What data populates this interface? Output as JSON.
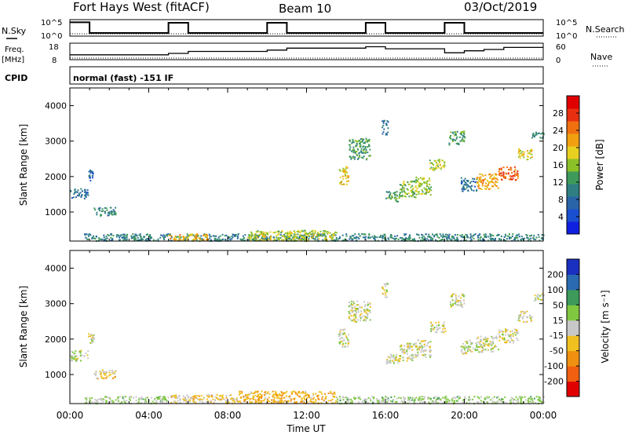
{
  "header": {
    "title": "Fort Hays West (fitACF)",
    "beam": "Beam 10",
    "date": "03/Oct/2019"
  },
  "param_panels": {
    "nsky_label": "N.Sky",
    "nsky_ticks": [
      "10^5",
      "10^0"
    ],
    "nsearch_label": "N.Search",
    "nsearch_ticks": [
      "10^5",
      "10^0"
    ],
    "freq_label": "Freq.",
    "freq_unit": "[MHz]",
    "freq_ticks": [
      "18",
      "8"
    ],
    "nave_label": "Nave",
    "nave_ticks": [
      "60",
      "0"
    ],
    "cpid_label": "CPID",
    "cpid_text": "normal (fast) -151 IF"
  },
  "x_axis": {
    "label": "Time UT",
    "ticks": [
      "00:00",
      "04:00",
      "08:00",
      "12:00",
      "16:00",
      "20:00",
      "00:00"
    ]
  },
  "power_colorbar": {
    "label": "Power [dB]",
    "ticks": [
      "4",
      "8",
      "12",
      "16",
      "20",
      "24",
      "28"
    ],
    "colors": [
      "#1020e0",
      "#1a4fd0",
      "#2a64a8",
      "#2f7f82",
      "#3d9a5a",
      "#8cc028",
      "#e8d020",
      "#f0a010",
      "#f07010",
      "#e83010",
      "#e00000"
    ]
  },
  "velocity_colorbar": {
    "label": "Velocity [m s⁻¹]",
    "ticks": [
      "200",
      "100",
      "50",
      "15",
      "-15",
      "-50",
      "-100",
      "-200"
    ],
    "colors": [
      "#1a30c0",
      "#2a6ab0",
      "#3d9a5a",
      "#7fc840",
      "#c8c8c8",
      "#f0c020",
      "#f09010",
      "#f06010",
      "#e00000"
    ]
  },
  "chart_data": [
    {
      "type": "line",
      "title": "N.Sky / N.Search",
      "x_range_hours": [
        0,
        24
      ],
      "series": [
        {
          "name": "N.Sky",
          "x": [
            0,
            1,
            1,
            5,
            5,
            6,
            6,
            10,
            10,
            11,
            11,
            15,
            15,
            16,
            16,
            19,
            19,
            20,
            20,
            24
          ],
          "y": [
            4.6,
            4.6,
            0.6,
            0.6,
            4.4,
            4.4,
            0.6,
            0.6,
            4.4,
            4.4,
            0.6,
            0.6,
            4.4,
            4.4,
            0.6,
            0.6,
            4.4,
            4.4,
            0.6,
            0.6
          ]
        },
        {
          "name": "N.Search",
          "x": [
            0,
            24
          ],
          "y": [
            0.3,
            0.3
          ]
        }
      ]
    },
    {
      "type": "line",
      "title": "Freq / Nave",
      "x_range_hours": [
        0,
        24
      ],
      "series": [
        {
          "name": "Freq",
          "x": [
            0,
            1,
            1,
            5,
            5,
            6,
            6,
            10,
            10,
            11,
            11,
            15,
            15,
            16,
            16,
            19,
            19,
            20,
            20,
            21,
            21,
            22,
            22,
            24
          ],
          "y": [
            10.5,
            10.5,
            10.5,
            10.5,
            11.5,
            11.5,
            13,
            13,
            14,
            14,
            15.5,
            15.5,
            16.5,
            16.5,
            15,
            15,
            12,
            12,
            13.5,
            13.5,
            14.5,
            14.5,
            16,
            16
          ]
        },
        {
          "name": "Nave",
          "x": [
            0,
            24
          ],
          "y": [
            8,
            8
          ]
        }
      ]
    },
    {
      "type": "heatmap",
      "title": "Power",
      "xlabel": "Time UT",
      "ylabel": "Slant Range [km]",
      "x_range_hours": [
        0,
        24
      ],
      "ylim": [
        180,
        4500
      ],
      "y_ticks": [
        1000,
        2000,
        3000,
        4000
      ],
      "regions": [
        {
          "t0": 0.0,
          "t1": 0.9,
          "r0": 1400,
          "r1": 1700,
          "value": 8
        },
        {
          "t0": 0.9,
          "t1": 1.2,
          "r0": 1900,
          "r1": 2200,
          "value": 6
        },
        {
          "t0": 1.2,
          "t1": 2.3,
          "r0": 900,
          "r1": 1150,
          "value": 10
        },
        {
          "t0": 0.7,
          "t1": 24.0,
          "r0": 200,
          "r1": 400,
          "value": 10
        },
        {
          "t0": 5.0,
          "t1": 7.0,
          "r0": 220,
          "r1": 400,
          "value": 20
        },
        {
          "t0": 9.0,
          "t1": 13.5,
          "r0": 200,
          "r1": 500,
          "value": 16
        },
        {
          "t0": 13.6,
          "t1": 14.1,
          "r0": 1800,
          "r1": 2300,
          "value": 18
        },
        {
          "t0": 14.1,
          "t1": 15.2,
          "r0": 2500,
          "r1": 3100,
          "value": 12
        },
        {
          "t0": 15.8,
          "t1": 16.1,
          "r0": 3200,
          "r1": 3600,
          "value": 8
        },
        {
          "t0": 16.0,
          "t1": 16.7,
          "r0": 1300,
          "r1": 1600,
          "value": 12
        },
        {
          "t0": 16.7,
          "t1": 17.5,
          "r0": 1400,
          "r1": 1900,
          "value": 14
        },
        {
          "t0": 17.5,
          "t1": 18.3,
          "r0": 1500,
          "r1": 2000,
          "value": 16
        },
        {
          "t0": 18.2,
          "t1": 19.0,
          "r0": 2200,
          "r1": 2500,
          "value": 16
        },
        {
          "t0": 19.2,
          "t1": 20.0,
          "r0": 2900,
          "r1": 3300,
          "value": 12
        },
        {
          "t0": 19.8,
          "t1": 20.6,
          "r0": 1600,
          "r1": 2000,
          "value": 8
        },
        {
          "t0": 20.6,
          "t1": 21.7,
          "r0": 1650,
          "r1": 2100,
          "value": 20
        },
        {
          "t0": 21.7,
          "t1": 22.7,
          "r0": 1900,
          "r1": 2300,
          "value": 24
        },
        {
          "t0": 22.7,
          "t1": 23.4,
          "r0": 2500,
          "r1": 2800,
          "value": 18
        },
        {
          "t0": 23.4,
          "t1": 24.0,
          "r0": 3100,
          "r1": 3300,
          "value": 10
        }
      ]
    },
    {
      "type": "heatmap",
      "title": "Velocity",
      "xlabel": "Time UT",
      "ylabel": "Slant Range [km]",
      "x_range_hours": [
        0,
        24
      ],
      "ylim": [
        180,
        4500
      ],
      "y_ticks": [
        1000,
        2000,
        3000,
        4000
      ],
      "regions": [
        {
          "t0": 0.0,
          "t1": 0.9,
          "r0": 1400,
          "r1": 1700,
          "value": 0
        },
        {
          "t0": 0.9,
          "t1": 1.2,
          "r0": 1900,
          "r1": 2200,
          "value": 0
        },
        {
          "t0": 1.2,
          "t1": 2.3,
          "r0": 900,
          "r1": 1150,
          "value": -40
        },
        {
          "t0": 0.7,
          "t1": 5.0,
          "r0": 200,
          "r1": 400,
          "value": 30
        },
        {
          "t0": 5.0,
          "t1": 8.5,
          "r0": 200,
          "r1": 450,
          "value": -40
        },
        {
          "t0": 8.5,
          "t1": 13.5,
          "r0": 200,
          "r1": 550,
          "value": -70
        },
        {
          "t0": 13.5,
          "t1": 24.0,
          "r0": 200,
          "r1": 400,
          "value": 40
        },
        {
          "t0": 13.6,
          "t1": 14.1,
          "r0": 1800,
          "r1": 2300,
          "value": 0
        },
        {
          "t0": 14.1,
          "t1": 15.2,
          "r0": 2500,
          "r1": 3100,
          "value": 0
        },
        {
          "t0": 15.8,
          "t1": 16.1,
          "r0": 3200,
          "r1": 3600,
          "value": 0
        },
        {
          "t0": 16.0,
          "t1": 16.7,
          "r0": 1300,
          "r1": 1600,
          "value": 0
        },
        {
          "t0": 16.7,
          "t1": 17.5,
          "r0": 1400,
          "r1": 1900,
          "value": 0
        },
        {
          "t0": 17.5,
          "t1": 18.3,
          "r0": 1500,
          "r1": 2000,
          "value": 0
        },
        {
          "t0": 18.2,
          "t1": 19.0,
          "r0": 2200,
          "r1": 2500,
          "value": 0
        },
        {
          "t0": 19.2,
          "t1": 20.0,
          "r0": 2900,
          "r1": 3300,
          "value": 0
        },
        {
          "t0": 19.8,
          "t1": 20.6,
          "r0": 1600,
          "r1": 2000,
          "value": 0
        },
        {
          "t0": 20.6,
          "t1": 21.7,
          "r0": 1650,
          "r1": 2100,
          "value": 0
        },
        {
          "t0": 21.7,
          "t1": 22.7,
          "r0": 1900,
          "r1": 2300,
          "value": 0
        },
        {
          "t0": 22.7,
          "t1": 23.4,
          "r0": 2500,
          "r1": 2800,
          "value": 0
        },
        {
          "t0": 23.4,
          "t1": 24.0,
          "r0": 3100,
          "r1": 3300,
          "value": 0
        }
      ]
    }
  ]
}
